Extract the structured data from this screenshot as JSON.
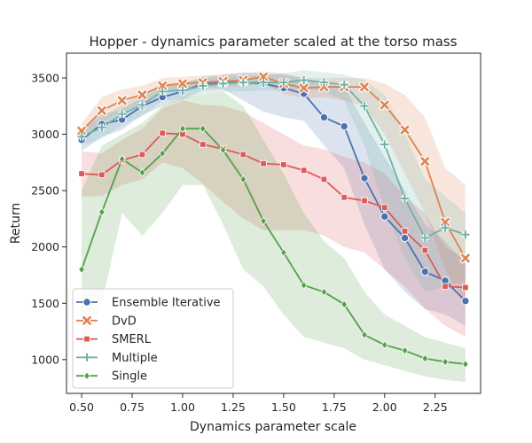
{
  "chart_data": {
    "type": "line",
    "title": "Hopper - dynamics parameter scaled at the torso mass",
    "xlabel": "Dynamics parameter scale",
    "ylabel": "Return",
    "xlim": [
      0.425,
      2.475
    ],
    "ylim": [
      700,
      3720
    ],
    "xticks": [
      "0.50",
      "0.75",
      "1.00",
      "1.25",
      "1.50",
      "1.75",
      "2.00",
      "2.25"
    ],
    "xtick_values": [
      0.5,
      0.75,
      1.0,
      1.25,
      1.5,
      1.75,
      2.0,
      2.25
    ],
    "yticks": [
      "1000",
      "1500",
      "2000",
      "2500",
      "3000",
      "3500"
    ],
    "ytick_values": [
      1000,
      1500,
      2000,
      2500,
      3000,
      3500
    ],
    "grid": false,
    "legend_position": "lower-left",
    "x": [
      0.5,
      0.6,
      0.7,
      0.8,
      0.9,
      1.0,
      1.1,
      1.2,
      1.3,
      1.4,
      1.5,
      1.6,
      1.7,
      1.8,
      1.9,
      2.0,
      2.1,
      2.2,
      2.3,
      2.4
    ],
    "series": [
      {
        "name": "Ensemble Iterative",
        "color": "#4c72b0",
        "marker": "circle",
        "values": [
          2950,
          3090,
          3130,
          3250,
          3330,
          3380,
          3450,
          3460,
          3460,
          3450,
          3410,
          3360,
          3150,
          3070,
          2610,
          2270,
          2080,
          1780,
          1700,
          1520
        ],
        "lower": [
          2850,
          2980,
          3040,
          3170,
          3250,
          3310,
          3390,
          3400,
          3300,
          3200,
          3150,
          3120,
          2900,
          2700,
          2200,
          1800,
          1600,
          1450,
          1400,
          1300
        ],
        "upper": [
          3050,
          3180,
          3220,
          3330,
          3410,
          3450,
          3510,
          3530,
          3550,
          3540,
          3530,
          3500,
          3450,
          3420,
          3100,
          2800,
          2500,
          2200,
          2050,
          1850
        ]
      },
      {
        "name": "DvD",
        "color": "#dd8452",
        "marker": "x",
        "values": [
          3030,
          3210,
          3300,
          3350,
          3430,
          3450,
          3460,
          3470,
          3480,
          3510,
          3450,
          3410,
          3420,
          3420,
          3420,
          3260,
          3040,
          2760,
          2220,
          1900
        ],
        "lower": [
          2950,
          3100,
          3200,
          3270,
          3370,
          3390,
          3410,
          3420,
          3430,
          3450,
          3360,
          3320,
          3330,
          3300,
          3250,
          3000,
          2650,
          2300,
          1800,
          1500
        ],
        "upper": [
          3100,
          3330,
          3400,
          3430,
          3500,
          3510,
          3520,
          3530,
          3540,
          3560,
          3540,
          3500,
          3500,
          3500,
          3500,
          3450,
          3350,
          3150,
          2700,
          2550
        ]
      },
      {
        "name": "SMERL",
        "color": "#dd5a5a",
        "marker": "square",
        "values": [
          2650,
          2640,
          2770,
          2820,
          3010,
          3000,
          2910,
          2870,
          2820,
          2740,
          2730,
          2680,
          2600,
          2440,
          2410,
          2350,
          2140,
          1970,
          1650,
          1640
        ],
        "lower": [
          2450,
          2450,
          2550,
          2600,
          2750,
          2700,
          2560,
          2400,
          2250,
          2150,
          2150,
          2150,
          2100,
          2000,
          1950,
          1800,
          1650,
          1450,
          1300,
          1200
        ],
        "upper": [
          2850,
          2830,
          2950,
          3050,
          3230,
          3300,
          3260,
          3250,
          3200,
          3100,
          3000,
          2900,
          2870,
          2800,
          2750,
          2650,
          2450,
          2300,
          2000,
          1900
        ]
      },
      {
        "name": "Multiple",
        "color": "#6fb2a8",
        "marker": "plus",
        "values": [
          2980,
          3060,
          3180,
          3260,
          3380,
          3390,
          3430,
          3450,
          3460,
          3460,
          3460,
          3480,
          3460,
          3440,
          3250,
          2910,
          2430,
          2080,
          2170,
          2110
        ],
        "lower": [
          2900,
          2960,
          3080,
          3160,
          3300,
          3310,
          3350,
          3380,
          3380,
          3390,
          3390,
          3410,
          3380,
          3300,
          2900,
          2350,
          1900,
          1600,
          1650,
          1700
        ],
        "upper": [
          3060,
          3150,
          3270,
          3350,
          3450,
          3460,
          3500,
          3510,
          3520,
          3520,
          3540,
          3570,
          3550,
          3530,
          3480,
          3350,
          3000,
          2600,
          2450,
          2300
        ]
      },
      {
        "name": "Single",
        "color": "#55a04a",
        "marker": "diamond",
        "values": [
          1800,
          2310,
          2780,
          2660,
          2830,
          3050,
          3050,
          2860,
          2600,
          2230,
          1950,
          1660,
          1600,
          1490,
          1220,
          1130,
          1080,
          1010,
          980,
          960
        ],
        "lower": [
          1000,
          1500,
          2300,
          2100,
          2300,
          2550,
          2550,
          2200,
          1800,
          1650,
          1400,
          1200,
          1150,
          1100,
          1000,
          950,
          900,
          850,
          820,
          800
        ],
        "upper": [
          2500,
          2900,
          3000,
          3100,
          3250,
          3320,
          3350,
          3380,
          3250,
          2950,
          2650,
          2300,
          2050,
          1900,
          1600,
          1400,
          1300,
          1200,
          1150,
          1100
        ]
      }
    ]
  }
}
